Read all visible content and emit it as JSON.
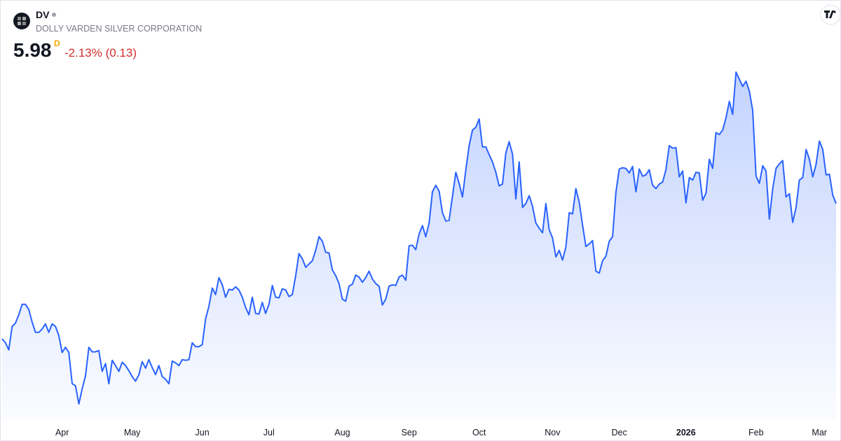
{
  "header": {
    "symbol": "DV",
    "company": "DOLLY VARDEN SILVER CORPORATION",
    "price": "5.98",
    "interval": "D",
    "change": "-2.13% (0.13)"
  },
  "chart_data": {
    "type": "line",
    "color": "#2962ff",
    "categories": [
      null,
      null,
      null,
      null,
      null,
      null,
      null,
      null,
      null,
      null,
      null,
      null,
      null,
      null,
      null,
      null,
      null,
      null,
      "Apr",
      null,
      null,
      null,
      null,
      null,
      null,
      null,
      null,
      null,
      null,
      null,
      null,
      null,
      null,
      null,
      null,
      null,
      null,
      null,
      null,
      "May",
      null,
      null,
      null,
      null,
      null,
      null,
      null,
      null,
      null,
      null,
      null,
      null,
      null,
      null,
      null,
      null,
      null,
      null,
      null,
      null,
      "Jun",
      null,
      null,
      null,
      null,
      null,
      null,
      null,
      null,
      null,
      null,
      null,
      null,
      null,
      null,
      null,
      null,
      null,
      null,
      null,
      "Jul",
      null,
      null,
      null,
      null,
      null,
      null,
      null,
      null,
      null,
      null,
      null,
      null,
      null,
      null,
      null,
      null,
      null,
      null,
      null,
      null,
      null,
      "Aug",
      null,
      null,
      null,
      null,
      null,
      null,
      null,
      null,
      null,
      null,
      null,
      null,
      null,
      null,
      null,
      null,
      null,
      null,
      null,
      "Sep",
      null,
      null,
      null,
      null,
      null,
      null,
      null,
      null,
      null,
      null,
      null,
      null,
      null,
      null,
      null,
      null,
      null,
      null,
      null,
      null,
      "Oct",
      null,
      null,
      null,
      null,
      null,
      null,
      null,
      null,
      null,
      null,
      null,
      null,
      null,
      null,
      null,
      null,
      null,
      null,
      null,
      null,
      null,
      "Nov",
      null,
      null,
      null,
      null,
      null,
      null,
      null,
      null,
      null,
      null,
      null,
      null,
      null,
      null,
      null,
      null,
      null,
      null,
      null,
      "Dec",
      null,
      null,
      null,
      null,
      null,
      null,
      null,
      null,
      null,
      null,
      null,
      null,
      null,
      null,
      null,
      null,
      null,
      null,
      null,
      "2026",
      null,
      null,
      null,
      null,
      null,
      null,
      null,
      null,
      null,
      null,
      null,
      null,
      null,
      null,
      null,
      null,
      null,
      null,
      null,
      null,
      "Feb",
      null,
      null,
      null,
      null,
      null,
      null,
      null,
      null,
      null,
      null,
      null,
      null,
      null,
      null,
      null,
      null,
      null,
      null,
      "Mar",
      null,
      null,
      null,
      null,
      null
    ],
    "values": [
      3.9,
      3.84,
      3.73,
      4.09,
      4.14,
      4.27,
      4.43,
      4.43,
      4.35,
      4.16,
      4.0,
      4.0,
      4.05,
      4.13,
      4.0,
      4.13,
      4.09,
      3.95,
      3.69,
      3.77,
      3.69,
      3.21,
      3.18,
      2.9,
      3.13,
      3.33,
      3.77,
      3.7,
      3.7,
      3.72,
      3.4,
      3.52,
      3.21,
      3.57,
      3.49,
      3.4,
      3.54,
      3.49,
      3.41,
      3.32,
      3.25,
      3.35,
      3.55,
      3.45,
      3.58,
      3.46,
      3.35,
      3.49,
      3.32,
      3.28,
      3.21,
      3.56,
      3.53,
      3.49,
      3.58,
      3.57,
      3.58,
      3.84,
      3.78,
      3.78,
      3.81,
      4.21,
      4.4,
      4.68,
      4.58,
      4.84,
      4.73,
      4.54,
      4.66,
      4.65,
      4.7,
      4.65,
      4.54,
      4.38,
      4.27,
      4.54,
      4.29,
      4.28,
      4.46,
      4.29,
      4.43,
      4.72,
      4.54,
      4.53,
      4.67,
      4.65,
      4.55,
      4.58,
      4.87,
      5.21,
      5.13,
      5.0,
      5.05,
      5.1,
      5.26,
      5.47,
      5.4,
      5.23,
      5.22,
      4.96,
      4.87,
      4.75,
      4.51,
      4.48,
      4.71,
      4.74,
      4.88,
      4.85,
      4.77,
      4.84,
      4.94,
      4.82,
      4.75,
      4.71,
      4.42,
      4.51,
      4.71,
      4.73,
      4.72,
      4.85,
      4.88,
      4.8,
      5.33,
      5.34,
      5.27,
      5.51,
      5.64,
      5.47,
      5.68,
      6.16,
      6.26,
      6.17,
      5.84,
      5.71,
      5.72,
      6.09,
      6.46,
      6.29,
      6.08,
      6.49,
      6.87,
      7.11,
      7.15,
      7.28,
      6.85,
      6.85,
      6.73,
      6.62,
      6.46,
      6.25,
      6.28,
      6.76,
      6.93,
      6.74,
      6.05,
      6.62,
      5.92,
      5.98,
      6.1,
      5.94,
      5.68,
      5.6,
      5.53,
      5.98,
      5.58,
      5.45,
      5.16,
      5.26,
      5.11,
      5.31,
      5.84,
      5.82,
      6.21,
      6.0,
      5.65,
      5.32,
      5.36,
      5.41,
      4.94,
      4.91,
      5.1,
      5.17,
      5.4,
      5.47,
      6.15,
      6.51,
      6.53,
      6.52,
      6.45,
      6.55,
      6.16,
      6.51,
      6.4,
      6.42,
      6.5,
      6.26,
      6.21,
      6.28,
      6.31,
      6.5,
      6.87,
      6.83,
      6.84,
      6.39,
      6.48,
      5.99,
      6.38,
      6.34,
      6.46,
      6.45,
      6.03,
      6.14,
      6.66,
      6.52,
      7.07,
      7.04,
      7.11,
      7.3,
      7.55,
      7.35,
      8.0,
      7.89,
      7.78,
      7.86,
      7.71,
      7.41,
      6.4,
      6.29,
      6.56,
      6.48,
      5.74,
      6.21,
      6.52,
      6.59,
      6.64,
      6.08,
      6.13,
      5.69,
      5.92,
      6.34,
      6.38,
      6.81,
      6.66,
      6.39,
      6.58,
      6.94,
      6.81,
      6.42,
      6.43,
      6.11,
      5.98
    ]
  }
}
